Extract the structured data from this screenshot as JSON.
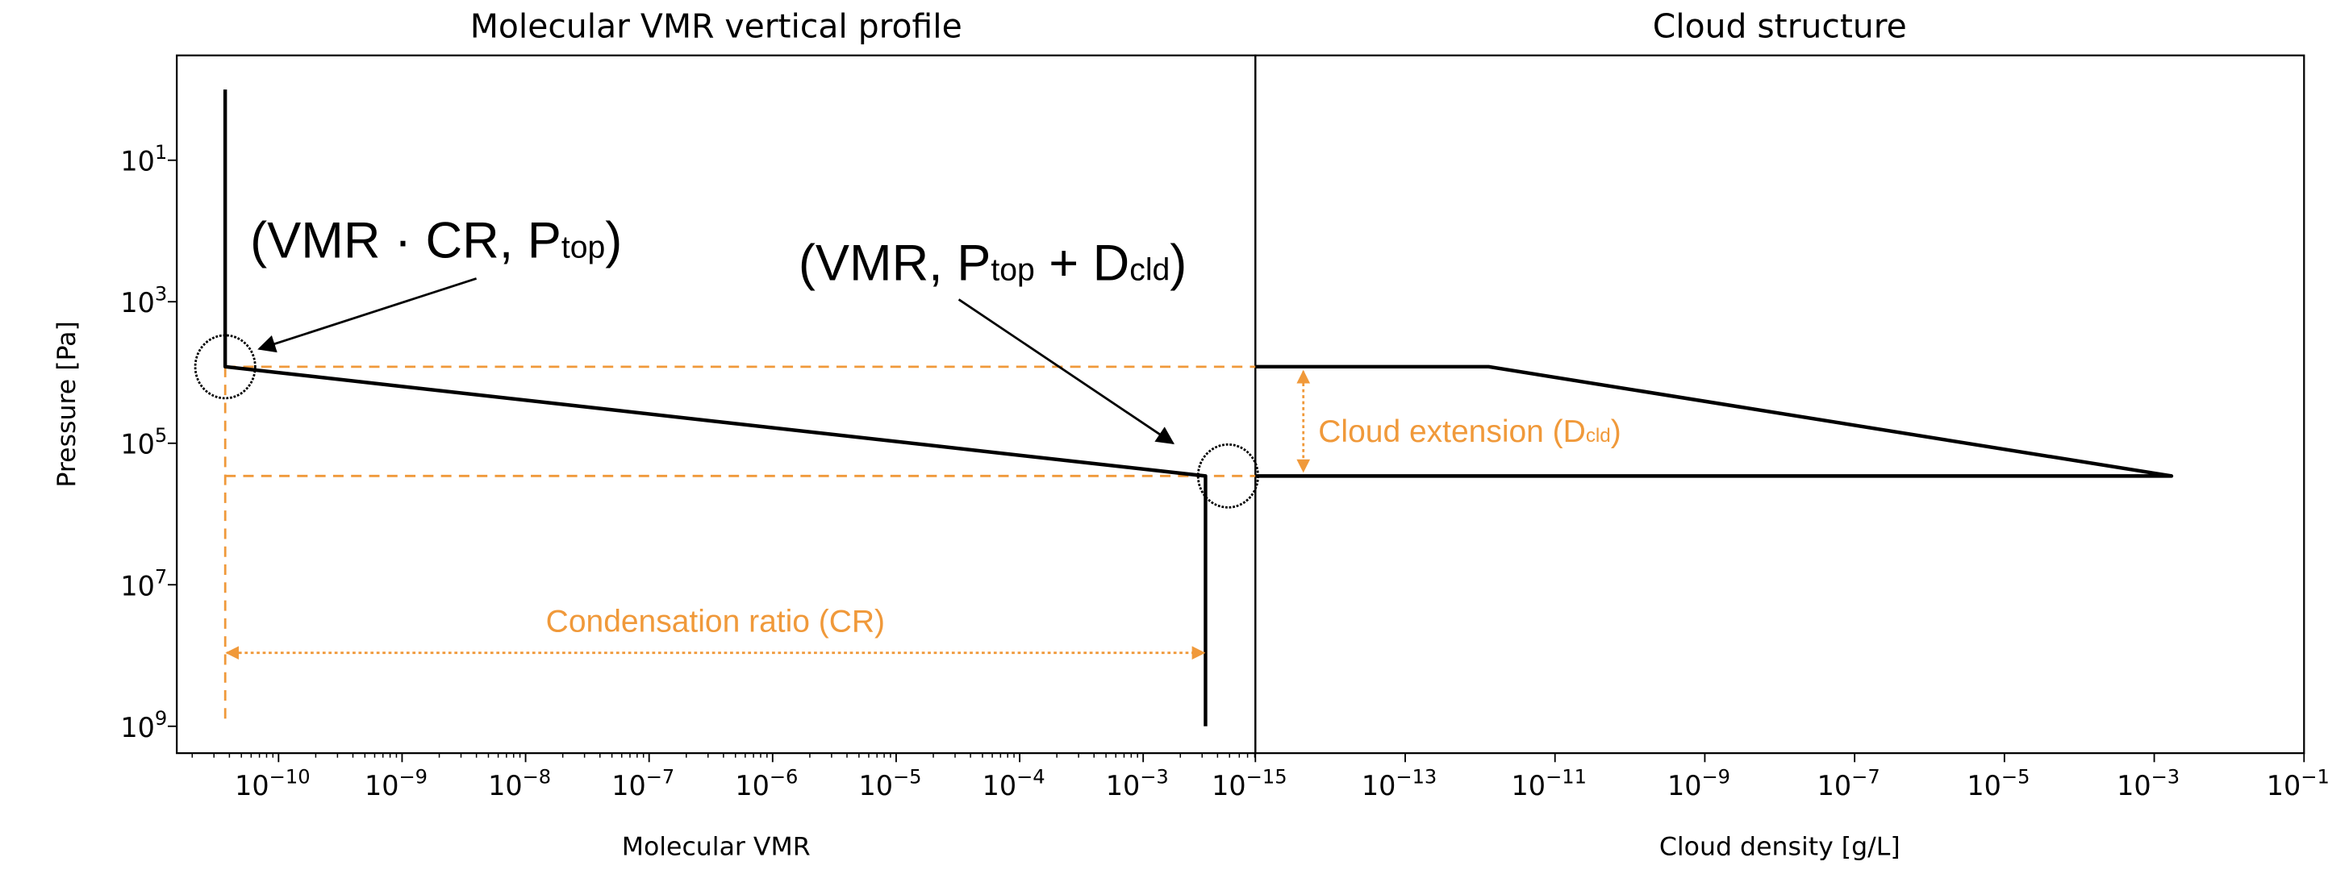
{
  "chart_data": [
    {
      "type": "line",
      "title": "Molecular VMR vertical profile",
      "xlabel": "Molecular VMR",
      "ylabel": "Pressure [Pa]",
      "xscale": "log",
      "yscale": "log",
      "xlim": [
        1.5e-11,
        0.0081
      ],
      "ylim": [
        2400000000.0,
        0.33
      ],
      "y_inverted": true,
      "grid": false,
      "xticks": [
        {
          "value": 1e-10,
          "base": "10",
          "exp": "−10"
        },
        {
          "value": 1e-09,
          "base": "10",
          "exp": "−9"
        },
        {
          "value": 1e-08,
          "base": "10",
          "exp": "−8"
        },
        {
          "value": 1e-07,
          "base": "10",
          "exp": "−7"
        },
        {
          "value": 1e-06,
          "base": "10",
          "exp": "−6"
        },
        {
          "value": 1e-05,
          "base": "10",
          "exp": "−5"
        },
        {
          "value": 0.0001,
          "base": "10",
          "exp": "−4"
        },
        {
          "value": 0.001,
          "base": "10",
          "exp": "−3"
        }
      ],
      "yticks": [
        {
          "value": 10.0,
          "base": "10",
          "exp": "1"
        },
        {
          "value": 1000.0,
          "base": "10",
          "exp": "3"
        },
        {
          "value": 100000.0,
          "base": "10",
          "exp": "5"
        },
        {
          "value": 10000000.0,
          "base": "10",
          "exp": "7"
        },
        {
          "value": 1000000000.0,
          "base": "10",
          "exp": "9"
        }
      ],
      "series": [
        {
          "color": "#000000",
          "x": [
            3.7e-11,
            3.7e-11,
            0.0032,
            0.0032
          ],
          "y": [
            1,
            8300.0,
            290000.0,
            1000000000.0
          ]
        }
      ],
      "guides": {
        "color": "#F0993A",
        "P_top": 8300.0,
        "P_bottom": 290000.0,
        "vmr_low": 3.7e-11,
        "vmr_high": 0.0032,
        "p_max": 1000000000.0
      },
      "annotations": {
        "point1": [
          {
            "t": "(VMR · CR, P"
          },
          {
            "t": "top",
            "sub": true
          },
          {
            "t": ")"
          }
        ],
        "point2": [
          {
            "t": "(VMR, P"
          },
          {
            "t": "top",
            "sub": true
          },
          {
            "t": " + D"
          },
          {
            "t": "cld",
            "sub": true
          },
          {
            "t": ")"
          }
        ],
        "cr_label": "Condensation ratio (CR)"
      }
    },
    {
      "type": "line",
      "title": "Cloud structure",
      "xlabel": "Cloud density [g/L]",
      "xscale": "log",
      "xlim": [
        1e-15,
        0.1
      ],
      "xticks": [
        {
          "value": 1e-15,
          "base": "10",
          "exp": "−15"
        },
        {
          "value": 1e-13,
          "base": "10",
          "exp": "−13"
        },
        {
          "value": 1e-11,
          "base": "10",
          "exp": "−11"
        },
        {
          "value": 1e-09,
          "base": "10",
          "exp": "−9"
        },
        {
          "value": 1e-07,
          "base": "10",
          "exp": "−7"
        },
        {
          "value": 1e-05,
          "base": "10",
          "exp": "−5"
        },
        {
          "value": 0.001,
          "base": "10",
          "exp": "−3"
        },
        {
          "value": 0.1,
          "base": "10",
          "exp": "−1"
        }
      ],
      "series": [
        {
          "color": "#000000",
          "x": [
            1e-15,
            1.3e-12,
            0.0017,
            1e-15
          ],
          "y": [
            8300.0,
            8300.0,
            290000.0,
            290000.0
          ]
        }
      ],
      "annotations": {
        "cloud_ext_label": [
          {
            "t": "Cloud extension (D"
          },
          {
            "t": "cld",
            "sub": true
          },
          {
            "t": ")"
          }
        ]
      }
    }
  ]
}
